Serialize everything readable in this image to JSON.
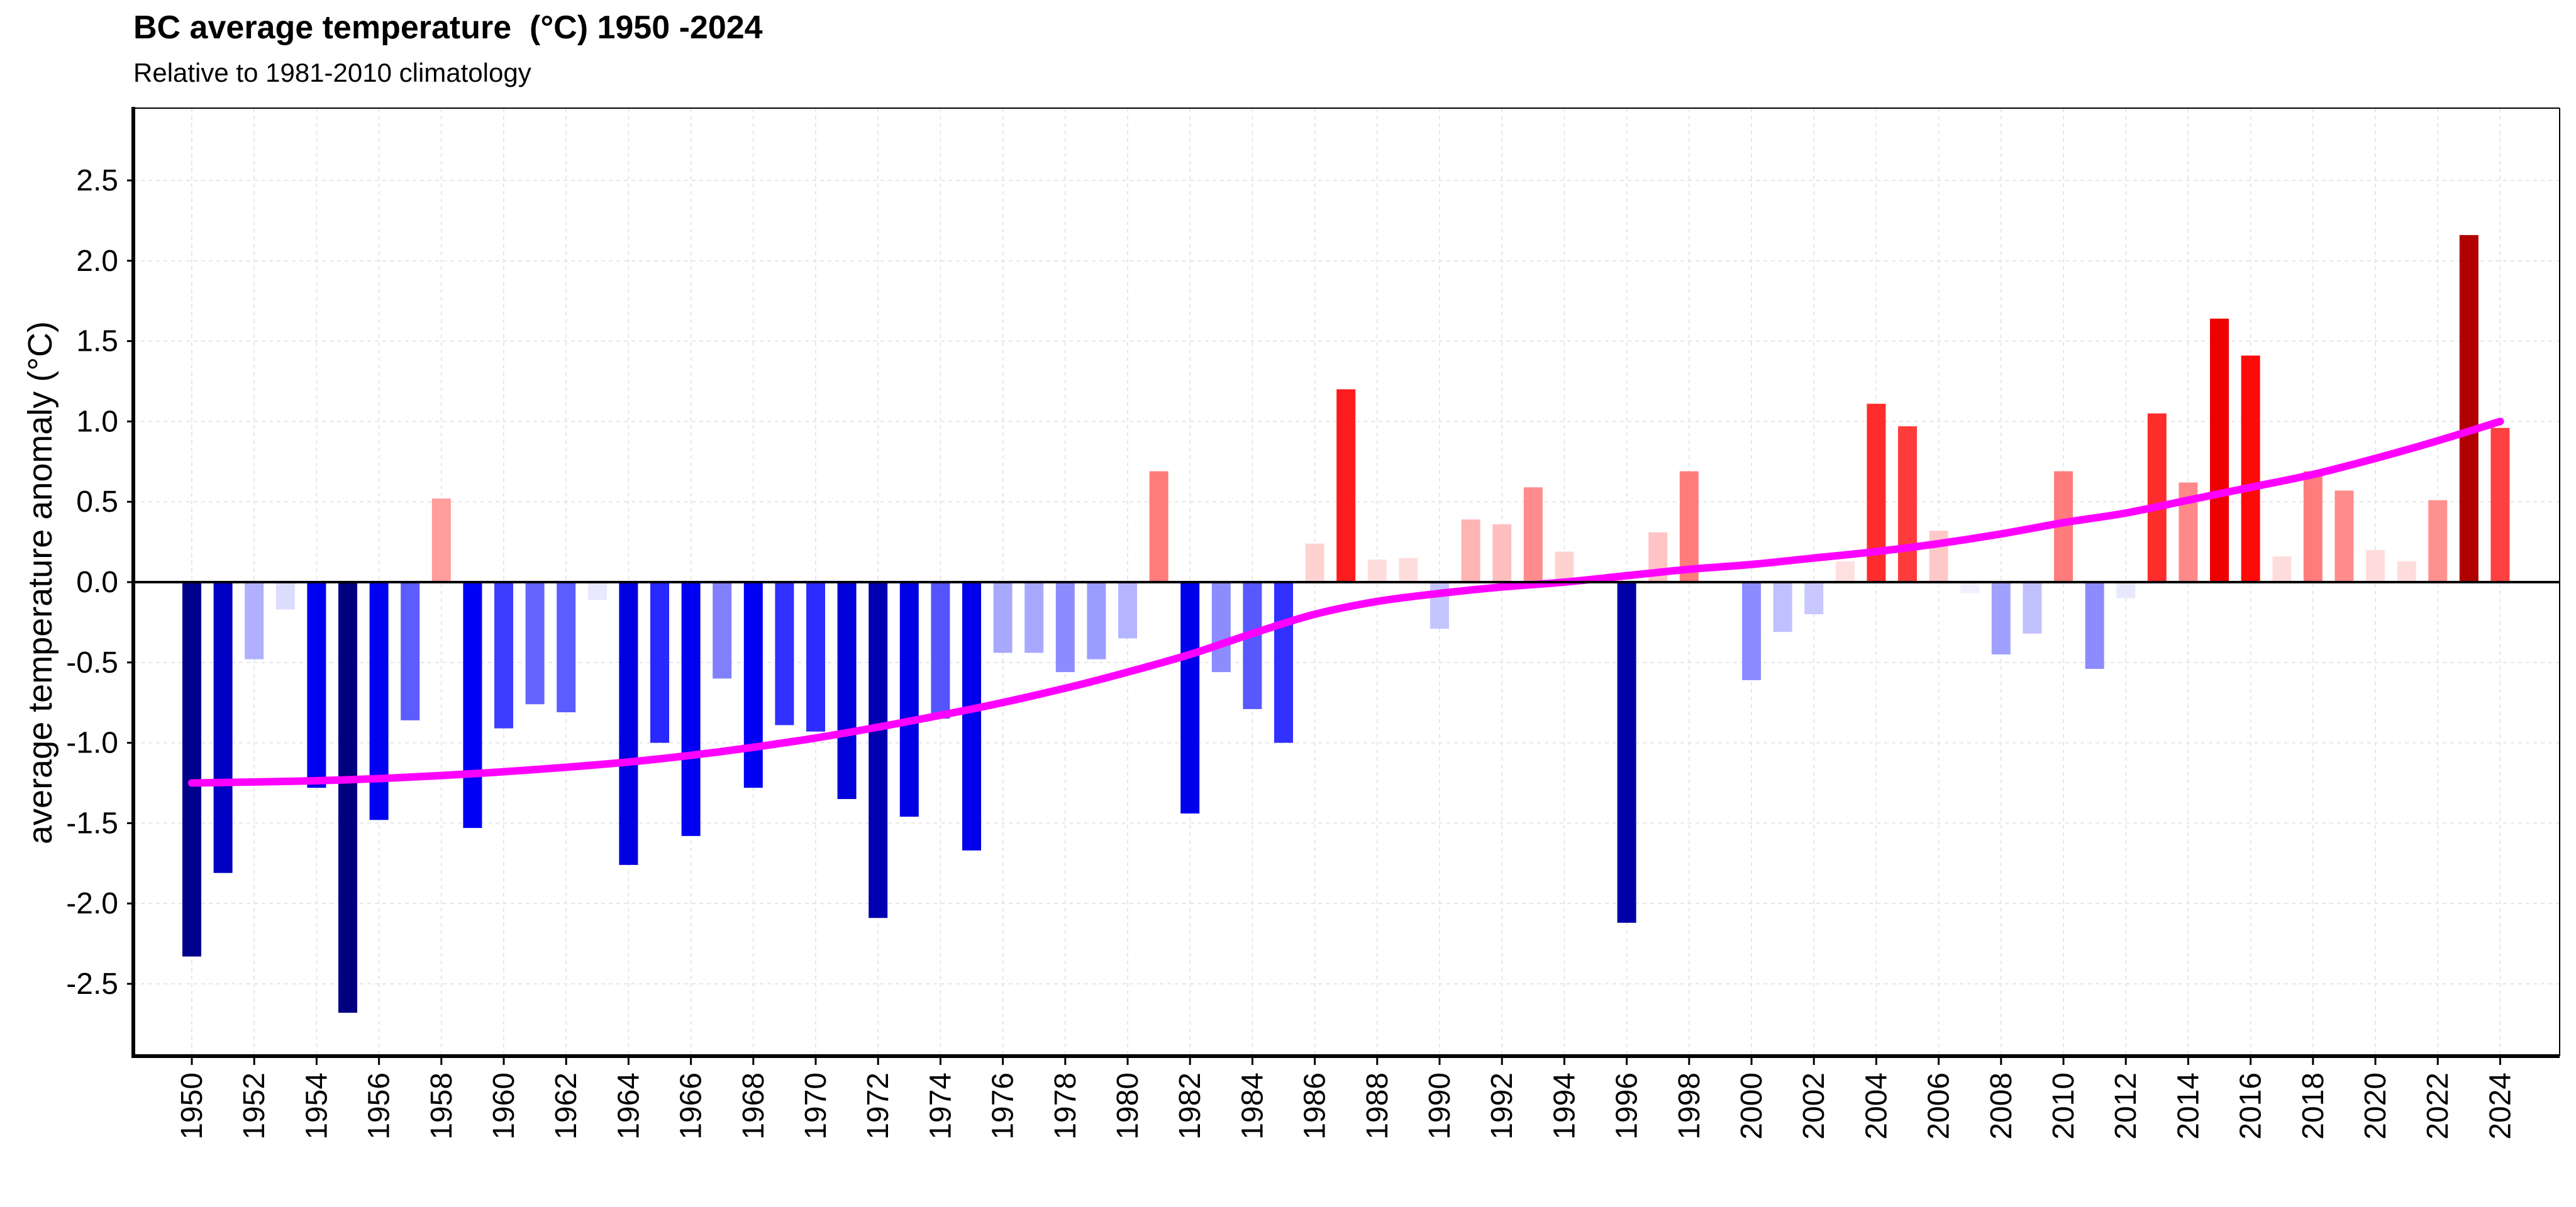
{
  "chart_data": {
    "type": "bar",
    "title": "BC average temperature  (°C) 1950 -2024",
    "subtitle": "Relative to 1981-2010 climatology",
    "xlabel": "",
    "ylabel": "average temperature anomaly (°C)",
    "ylim": [
      -2.95,
      2.95
    ],
    "yticks": [
      "-2.5",
      "-2.0",
      "-1.5",
      "-1.0",
      "-0.5",
      "0.0",
      "0.5",
      "1.0",
      "1.5",
      "2.0",
      "2.5"
    ],
    "xtick_step": 2,
    "grid": true,
    "categories": [
      1950,
      1951,
      1952,
      1953,
      1954,
      1955,
      1956,
      1957,
      1958,
      1959,
      1960,
      1961,
      1962,
      1963,
      1964,
      1965,
      1966,
      1967,
      1968,
      1969,
      1970,
      1971,
      1972,
      1973,
      1974,
      1975,
      1976,
      1977,
      1978,
      1979,
      1980,
      1981,
      1982,
      1983,
      1984,
      1985,
      1986,
      1987,
      1988,
      1989,
      1990,
      1991,
      1992,
      1993,
      1994,
      1995,
      1996,
      1997,
      1998,
      1999,
      2000,
      2001,
      2002,
      2003,
      2004,
      2005,
      2006,
      2007,
      2008,
      2009,
      2010,
      2011,
      2012,
      2013,
      2014,
      2015,
      2016,
      2017,
      2018,
      2019,
      2020,
      2021,
      2022,
      2023,
      2024
    ],
    "values": [
      -2.33,
      -1.81,
      -0.48,
      -0.17,
      -1.28,
      -2.68,
      -1.48,
      -0.86,
      0.52,
      -1.53,
      -0.91,
      -0.76,
      -0.81,
      -0.11,
      -1.76,
      -1.0,
      -1.58,
      -0.6,
      -1.28,
      -0.89,
      -0.93,
      -1.35,
      -2.09,
      -1.46,
      -0.85,
      -1.67,
      -0.44,
      -0.44,
      -0.56,
      -0.48,
      -0.35,
      0.69,
      -1.44,
      -0.56,
      -0.79,
      -1.0,
      0.24,
      1.2,
      0.14,
      0.15,
      -0.29,
      0.39,
      0.36,
      0.59,
      0.19,
      0.0,
      -2.12,
      0.31,
      0.69,
      0.0,
      -0.61,
      -0.31,
      -0.2,
      0.13,
      1.11,
      0.97,
      0.32,
      -0.07,
      -0.45,
      -0.32,
      0.69,
      -0.54,
      -0.1,
      1.05,
      0.62,
      1.64,
      1.41,
      0.16,
      0.69,
      0.57,
      0.2,
      0.13,
      0.51,
      2.16,
      0.96
    ],
    "colors": [
      "#00008c",
      "#0000c4",
      "#b0b0ff",
      "#dcdcff",
      "#0000f0",
      "#000080",
      "#0000f5",
      "#5c5cff",
      "#ff9c9c",
      "#0000f5",
      "#3c3cff",
      "#6464ff",
      "#5c5cff",
      "#e8e8ff",
      "#0000e0",
      "#2828ff",
      "#0000f2",
      "#8080ff",
      "#0000f5",
      "#3030ff",
      "#2c2cff",
      "#0000d8",
      "#0000b0",
      "#0000e4",
      "#5454ff",
      "#0000ea",
      "#a8a8ff",
      "#a8a8ff",
      "#8c8cff",
      "#9c9cff",
      "#b4b4ff",
      "#ff7c7c",
      "#0000ea",
      "#8c8cff",
      "#5858ff",
      "#3030ff",
      "#ffd2d2",
      "#ff1c1c",
      "#ffdcdc",
      "#ffdcdc",
      "#c4c4ff",
      "#ffb4b4",
      "#ffbebe",
      "#ff8c8c",
      "#ffd2d2",
      "#ffffff",
      "#0000a8",
      "#ffc4c4",
      "#ff7c7c",
      "#ffffff",
      "#8c8cff",
      "#c0c0ff",
      "#c8c8ff",
      "#ffe0e0",
      "#ff2c2c",
      "#ff3c3c",
      "#ffc8c8",
      "#f0f0ff",
      "#a0a0ff",
      "#c0c0ff",
      "#ff7c7c",
      "#8c8cff",
      "#e8e8ff",
      "#ff2c2c",
      "#ff8888",
      "#ee0000",
      "#ff0a0a",
      "#ffdcdc",
      "#ff7c7c",
      "#ff8c8c",
      "#ffdcdc",
      "#ffdcdc",
      "#ff9090",
      "#b00000",
      "#ff4040"
    ],
    "series": [
      {
        "type": "line",
        "color": "#ff00ff",
        "x": [
          1950,
          1955,
          1960,
          1965,
          1970,
          1975,
          1978,
          1980,
          1982,
          1984,
          1986,
          1988,
          1990,
          1992,
          1994,
          1996,
          1998,
          2000,
          2002,
          2004,
          2006,
          2008,
          2010,
          2012,
          2014,
          2016,
          2018,
          2020,
          2022,
          2024
        ],
        "values": [
          -1.25,
          -1.23,
          -1.18,
          -1.1,
          -0.97,
          -0.79,
          -0.66,
          -0.56,
          -0.45,
          -0.32,
          -0.2,
          -0.12,
          -0.07,
          -0.03,
          0.0,
          0.04,
          0.08,
          0.11,
          0.15,
          0.19,
          0.24,
          0.3,
          0.37,
          0.43,
          0.51,
          0.59,
          0.67,
          0.77,
          0.88,
          1.0
        ]
      }
    ]
  }
}
